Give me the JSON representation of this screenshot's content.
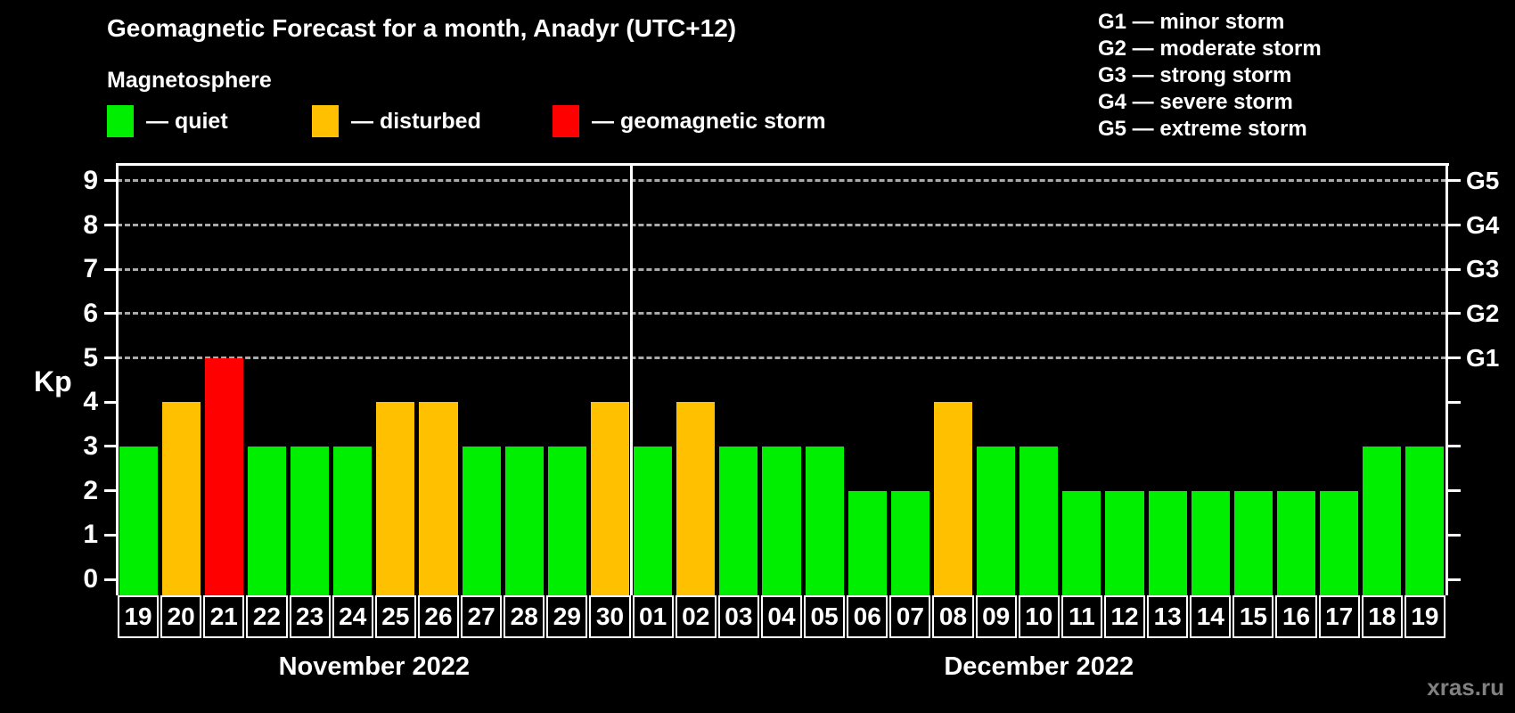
{
  "header": {
    "title": "Geomagnetic Forecast for a month, Anadyr (UTC+12)"
  },
  "legend": {
    "heading": "Magnetosphere",
    "items": [
      {
        "key": "quiet",
        "label": "— quiet",
        "color": "#00ee00"
      },
      {
        "key": "disturbed",
        "label": "— disturbed",
        "color": "#ffc000"
      },
      {
        "key": "storm",
        "label": "— geomagnetic storm",
        "color": "#ff0000"
      }
    ]
  },
  "storm_scale": {
    "items": [
      "G1 — minor storm",
      "G2 — moderate storm",
      "G3 — strong storm",
      "G4 — severe storm",
      "G5 — extreme storm"
    ]
  },
  "footer": {
    "watermark": "xras.ru"
  },
  "chart_data": {
    "type": "bar",
    "title": "Geomagnetic Forecast for a month, Anadyr (UTC+12)",
    "ylabel": "Kp",
    "ylim": [
      0,
      9
    ],
    "y_ticks": [
      0,
      1,
      2,
      3,
      4,
      5,
      6,
      7,
      8,
      9
    ],
    "gridlines_at": [
      5,
      6,
      7,
      8,
      9
    ],
    "grid": "dashed",
    "legend_position": "top",
    "right_axis": [
      {
        "kp": 5,
        "label": "G1"
      },
      {
        "kp": 6,
        "label": "G2"
      },
      {
        "kp": 7,
        "label": "G3"
      },
      {
        "kp": 8,
        "label": "G4"
      },
      {
        "kp": 9,
        "label": "G5"
      }
    ],
    "status_colors": {
      "quiet": "#00ee00",
      "disturbed": "#ffc000",
      "storm": "#ff0000"
    },
    "months": [
      {
        "label": "November 2022",
        "start_index": 0,
        "count": 12
      },
      {
        "label": "December 2022",
        "start_index": 12,
        "count": 19
      }
    ],
    "bars": [
      {
        "date": "19",
        "kp": 3,
        "status": "quiet"
      },
      {
        "date": "20",
        "kp": 4,
        "status": "disturbed"
      },
      {
        "date": "21",
        "kp": 5,
        "status": "storm"
      },
      {
        "date": "22",
        "kp": 3,
        "status": "quiet"
      },
      {
        "date": "23",
        "kp": 3,
        "status": "quiet"
      },
      {
        "date": "24",
        "kp": 3,
        "status": "quiet"
      },
      {
        "date": "25",
        "kp": 4,
        "status": "disturbed"
      },
      {
        "date": "26",
        "kp": 4,
        "status": "disturbed"
      },
      {
        "date": "27",
        "kp": 3,
        "status": "quiet"
      },
      {
        "date": "28",
        "kp": 3,
        "status": "quiet"
      },
      {
        "date": "29",
        "kp": 3,
        "status": "quiet"
      },
      {
        "date": "30",
        "kp": 4,
        "status": "disturbed"
      },
      {
        "date": "01",
        "kp": 3,
        "status": "quiet"
      },
      {
        "date": "02",
        "kp": 4,
        "status": "disturbed"
      },
      {
        "date": "03",
        "kp": 3,
        "status": "quiet"
      },
      {
        "date": "04",
        "kp": 3,
        "status": "quiet"
      },
      {
        "date": "05",
        "kp": 3,
        "status": "quiet"
      },
      {
        "date": "06",
        "kp": 2,
        "status": "quiet"
      },
      {
        "date": "07",
        "kp": 2,
        "status": "quiet"
      },
      {
        "date": "08",
        "kp": 4,
        "status": "disturbed"
      },
      {
        "date": "09",
        "kp": 3,
        "status": "quiet"
      },
      {
        "date": "10",
        "kp": 3,
        "status": "quiet"
      },
      {
        "date": "11",
        "kp": 2,
        "status": "quiet"
      },
      {
        "date": "12",
        "kp": 2,
        "status": "quiet"
      },
      {
        "date": "13",
        "kp": 2,
        "status": "quiet"
      },
      {
        "date": "14",
        "kp": 2,
        "status": "quiet"
      },
      {
        "date": "15",
        "kp": 2,
        "status": "quiet"
      },
      {
        "date": "16",
        "kp": 2,
        "status": "quiet"
      },
      {
        "date": "17",
        "kp": 2,
        "status": "quiet"
      },
      {
        "date": "18",
        "kp": 3,
        "status": "quiet"
      },
      {
        "date": "19",
        "kp": 3,
        "status": "quiet"
      }
    ]
  }
}
